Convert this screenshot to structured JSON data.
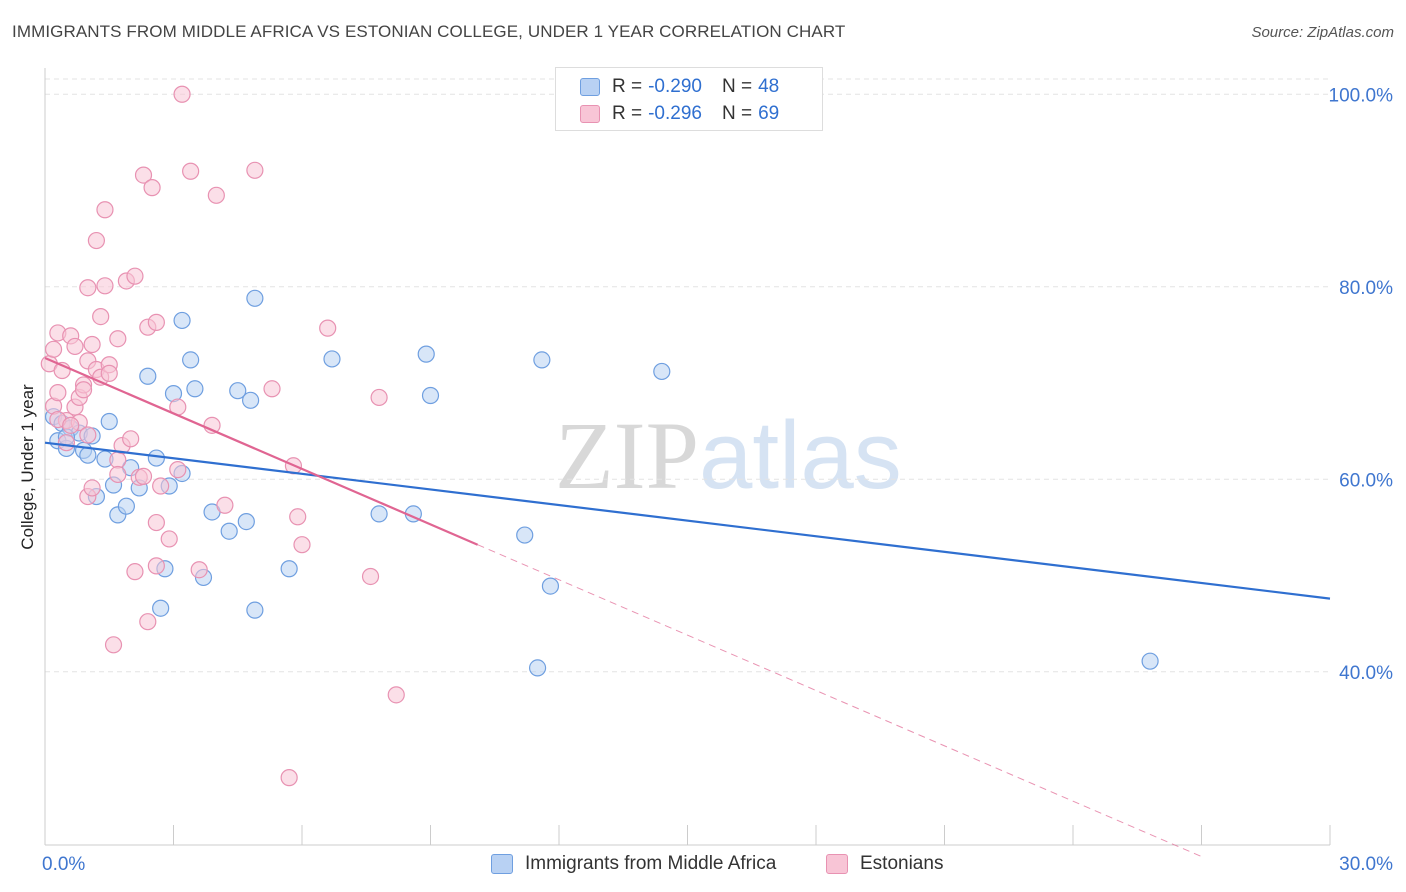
{
  "title": "IMMIGRANTS FROM MIDDLE AFRICA VS ESTONIAN COLLEGE, UNDER 1 YEAR CORRELATION CHART",
  "source": "Source: ZipAtlas.com",
  "watermark": {
    "zip": "ZIP",
    "atlas": "atlas"
  },
  "legend_top": [
    {
      "r_key": "R = ",
      "r_val": "-0.290",
      "n_key": "N = ",
      "n_val": "48"
    },
    {
      "r_key": "R = ",
      "r_val": "-0.296",
      "n_key": "N = ",
      "n_val": "69"
    }
  ],
  "colors": {
    "blue_fill": "#b8d1f3",
    "blue_stroke": "#6f9fe0",
    "blue_line": "#2f6fd0",
    "pink_fill": "#f8c5d6",
    "pink_stroke": "#e892b2",
    "pink_line": "#e06592",
    "grid": "#e3e3e3",
    "tick_label": "#3f76cf"
  },
  "chart_data": {
    "type": "scatter",
    "title": "IMMIGRANTS FROM MIDDLE AFRICA VS ESTONIAN COLLEGE, UNDER 1 YEAR CORRELATION CHART",
    "xlabel": "",
    "ylabel": "College, Under 1 year",
    "xlim": [
      0,
      30
    ],
    "ylim": [
      22,
      102
    ],
    "x_tick_labels": [
      "0.0%",
      "30.0%"
    ],
    "y_ticks": [
      40,
      60,
      80,
      100
    ],
    "y_tick_labels": [
      "40.0%",
      "60.0%",
      "80.0%",
      "100.0%"
    ],
    "grid": true,
    "legend_position": "bottom-center",
    "series": [
      {
        "name": "Immigrants from Middle Africa",
        "color": "#b8d1f3",
        "r": -0.29,
        "n": 48,
        "trend": {
          "x": [
            0,
            30
          ],
          "y": [
            63.8,
            47.6
          ],
          "style": "solid"
        },
        "points": [
          [
            0.2,
            66.5
          ],
          [
            0.3,
            64.0
          ],
          [
            0.5,
            63.2
          ],
          [
            0.4,
            65.8
          ],
          [
            0.6,
            65.3
          ],
          [
            0.8,
            64.8
          ],
          [
            0.9,
            63.0
          ],
          [
            1.0,
            62.5
          ],
          [
            1.1,
            64.5
          ],
          [
            1.2,
            58.2
          ],
          [
            1.4,
            62.1
          ],
          [
            1.5,
            66.0
          ],
          [
            1.6,
            59.4
          ],
          [
            1.7,
            56.3
          ],
          [
            1.9,
            57.2
          ],
          [
            2.0,
            61.2
          ],
          [
            2.2,
            59.1
          ],
          [
            2.4,
            70.7
          ],
          [
            2.6,
            62.2
          ],
          [
            2.7,
            46.6
          ],
          [
            2.8,
            50.7
          ],
          [
            2.9,
            59.3
          ],
          [
            3.0,
            68.9
          ],
          [
            3.2,
            60.6
          ],
          [
            3.2,
            76.5
          ],
          [
            3.4,
            72.4
          ],
          [
            3.5,
            69.4
          ],
          [
            3.7,
            49.8
          ],
          [
            3.9,
            56.6
          ],
          [
            4.3,
            54.6
          ],
          [
            4.5,
            69.2
          ],
          [
            4.7,
            55.6
          ],
          [
            4.8,
            68.2
          ],
          [
            4.9,
            78.8
          ],
          [
            4.9,
            46.4
          ],
          [
            5.7,
            50.7
          ],
          [
            6.7,
            72.5
          ],
          [
            7.8,
            56.4
          ],
          [
            8.6,
            56.4
          ],
          [
            8.9,
            73.0
          ],
          [
            9.0,
            68.7
          ],
          [
            11.2,
            54.2
          ],
          [
            11.5,
            40.4
          ],
          [
            11.6,
            72.4
          ],
          [
            11.8,
            48.9
          ],
          [
            14.4,
            71.2
          ],
          [
            25.8,
            41.1
          ],
          [
            0.5,
            64.4
          ]
        ]
      },
      {
        "name": "Estonians",
        "color": "#f8c5d6",
        "r": -0.296,
        "n": 69,
        "trend": {
          "x": [
            0,
            10.1
          ],
          "y": [
            72.6,
            53.2
          ],
          "style": "solid"
        },
        "trend_extension": {
          "x": [
            10.1,
            27.0
          ],
          "y": [
            53.2,
            20.8
          ],
          "style": "dashed"
        },
        "points": [
          [
            0.1,
            72.0
          ],
          [
            0.2,
            73.5
          ],
          [
            0.2,
            67.6
          ],
          [
            0.3,
            75.2
          ],
          [
            0.3,
            69.0
          ],
          [
            0.4,
            71.3
          ],
          [
            0.5,
            66.1
          ],
          [
            0.5,
            63.8
          ],
          [
            0.6,
            74.9
          ],
          [
            0.7,
            73.8
          ],
          [
            0.7,
            67.5
          ],
          [
            0.8,
            68.5
          ],
          [
            0.8,
            65.9
          ],
          [
            0.9,
            69.8
          ],
          [
            1.0,
            72.3
          ],
          [
            1.0,
            64.6
          ],
          [
            1.0,
            58.2
          ],
          [
            1.0,
            79.9
          ],
          [
            1.1,
            74.0
          ],
          [
            1.1,
            59.1
          ],
          [
            1.2,
            71.4
          ],
          [
            1.2,
            84.8
          ],
          [
            1.3,
            76.9
          ],
          [
            1.3,
            70.6
          ],
          [
            1.4,
            80.1
          ],
          [
            1.4,
            88.0
          ],
          [
            1.5,
            71.9
          ],
          [
            1.6,
            42.8
          ],
          [
            1.7,
            74.6
          ],
          [
            1.7,
            62.0
          ],
          [
            1.7,
            60.5
          ],
          [
            1.8,
            63.5
          ],
          [
            1.9,
            80.6
          ],
          [
            2.0,
            64.2
          ],
          [
            2.1,
            50.4
          ],
          [
            2.1,
            81.1
          ],
          [
            2.2,
            60.2
          ],
          [
            2.3,
            91.6
          ],
          [
            2.3,
            60.3
          ],
          [
            2.4,
            45.2
          ],
          [
            2.4,
            75.8
          ],
          [
            2.5,
            90.3
          ],
          [
            2.6,
            76.3
          ],
          [
            2.6,
            55.5
          ],
          [
            2.6,
            51.0
          ],
          [
            2.7,
            59.3
          ],
          [
            2.9,
            53.8
          ],
          [
            3.1,
            61.0
          ],
          [
            3.1,
            67.5
          ],
          [
            3.2,
            100.0
          ],
          [
            3.4,
            92.0
          ],
          [
            3.6,
            50.6
          ],
          [
            3.9,
            65.6
          ],
          [
            4.0,
            89.5
          ],
          [
            4.2,
            57.3
          ],
          [
            4.9,
            92.1
          ],
          [
            5.3,
            69.4
          ],
          [
            5.7,
            29.0
          ],
          [
            5.8,
            61.4
          ],
          [
            5.9,
            56.1
          ],
          [
            6.0,
            53.2
          ],
          [
            6.6,
            75.7
          ],
          [
            7.6,
            49.9
          ],
          [
            7.8,
            68.5
          ],
          [
            8.2,
            37.6
          ],
          [
            0.3,
            66.2
          ],
          [
            0.6,
            65.6
          ],
          [
            0.9,
            69.3
          ],
          [
            1.5,
            71.0
          ]
        ]
      }
    ]
  }
}
